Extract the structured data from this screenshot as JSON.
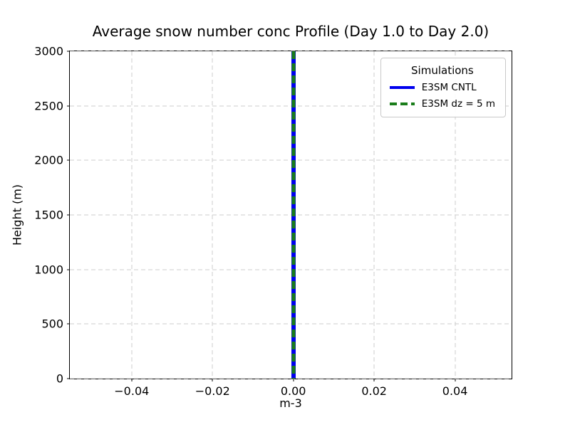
{
  "chart_data": {
    "type": "line",
    "title": "Average snow number conc Profile (Day 1.0 to Day 2.0)",
    "xlabel": "m-3",
    "ylabel": "Height (m)",
    "xlim": [
      -0.0553,
      0.054
    ],
    "ylim": [
      0,
      3000
    ],
    "xticks": [
      -0.04,
      -0.02,
      0,
      0.02,
      0.04
    ],
    "xtick_labels": [
      "−0.04",
      "−0.02",
      "0.00",
      "0.02",
      "0.04"
    ],
    "yticks": [
      0,
      500,
      1000,
      1500,
      2000,
      2500,
      3000
    ],
    "ytick_labels": [
      "0",
      "500",
      "1000",
      "1500",
      "2000",
      "2500",
      "3000"
    ],
    "grid": true,
    "grid_color": "#cccccc",
    "axis_color": "#000000",
    "background_color": "#ffffff",
    "legend": {
      "title": "Simulations",
      "position": "upper right"
    },
    "series": [
      {
        "name": "E3SM CNTL",
        "color": "#0000ee",
        "style": "solid",
        "x": [
          0,
          0
        ],
        "y": [
          0,
          3000
        ]
      },
      {
        "name": "E3SM dz = 5 m",
        "color": "#1a7d1a",
        "style": "dashed",
        "x": [
          0,
          0
        ],
        "y": [
          0,
          3000
        ]
      }
    ]
  }
}
